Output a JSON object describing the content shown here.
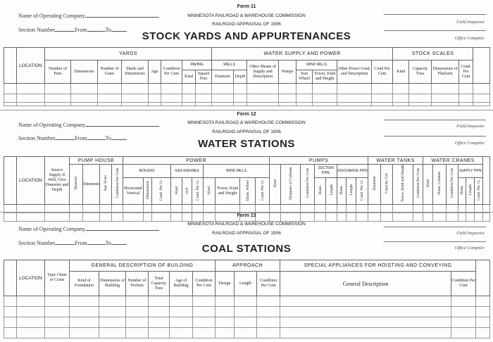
{
  "common": {
    "name_label": "Name of Operating Company",
    "section_label": "Section Number",
    "from_label": "From",
    "to_label": "To",
    "commission": "MINNESOTA RAILROAD & WAREHOUSE COMMISSION",
    "appraisal": "RAILROAD APPRAISAL OF 1906",
    "field_inspector": "Field Inspector",
    "office_compiler": "Office Compiler"
  },
  "forms": [
    {
      "form_no": "Form 11",
      "title": "STOCK YARDS AND APPURTENANCES",
      "headers": [
        "",
        "LOCATION",
        "YARDS",
        "WATER SUPPLY AND POWER",
        "STOCK SCALES",
        "",
        "Number of Pens",
        "Dimensions",
        "Number of Gates",
        "Sheds and Dimensions",
        "Age",
        "Condition Per Cent",
        "PAVING",
        "WELLS",
        "Other Means of Supply and Description",
        "Pumps",
        "WIND MILLS",
        "Other Power Used, and Description",
        "Cond Per Cent",
        "Kind",
        "Capacity Tons",
        "Dimensions of Platform",
        "Cond. Per Cent",
        "Kind",
        "Square Feet",
        "Diameter",
        "Depth",
        "Size Wheel",
        "Tower, Kind and Height"
      ]
    },
    {
      "form_no": "Form 12",
      "title": "WATER STATIONS",
      "headers": [
        "",
        "LOCATION",
        "Source Supply If Well, Give Diameter and Depth",
        "PUMP HOUSE",
        "POWER",
        "PUMPS",
        "WATER TANKS",
        "WATER CRANES",
        "",
        "Material",
        "Dimensions",
        "Age Years",
        "Condition Per Cent",
        "BOILERS",
        "GAS ENGINES",
        "WIND MILLS",
        "Kind",
        "Diameter of Cylinder",
        "Condition Per Cent",
        "SUCTION PIPE",
        "DISCHARGE PIPE",
        "Diameter",
        "Capacity Gal.",
        "Tower, Kind and Height",
        "Condition Per Cent",
        "Kind",
        "Diam. Column",
        "Condition Per Cent",
        "SUPPLY PIPE",
        "Horizontal Vertical",
        "Dimensions",
        "Cond. Per Ct.",
        "Kind",
        "H.P.",
        "Cond. Per Ct.",
        "Kind",
        "Tower, Kind and Height",
        "Diam. Wheel",
        "Cond. Per Ct.",
        "Diam.",
        "Length",
        "Diam.",
        "Length",
        "Cond. Per Ct.",
        "Diam.",
        "Length",
        "Cond. Per Ct."
      ]
    },
    {
      "form_no": "Form 13",
      "title": "COAL STATIONS",
      "headers": [
        "",
        "LOCATION",
        "Type Chute or Crane",
        "GENERAL DESCRIPTION OF BUILDING",
        "APPROACH",
        "SPECIAL APPLIANCES FOR HOISTING AND CONVEYING",
        "",
        "Kind of Foundation",
        "Dimensions of Building",
        "Number of Pockets",
        "Total Capacity Tons",
        "Age of Building",
        "Condition Per Cent",
        "Design",
        "Length",
        "Condition Per Cent",
        "General Description",
        "Condition Per Cent"
      ]
    }
  ]
}
